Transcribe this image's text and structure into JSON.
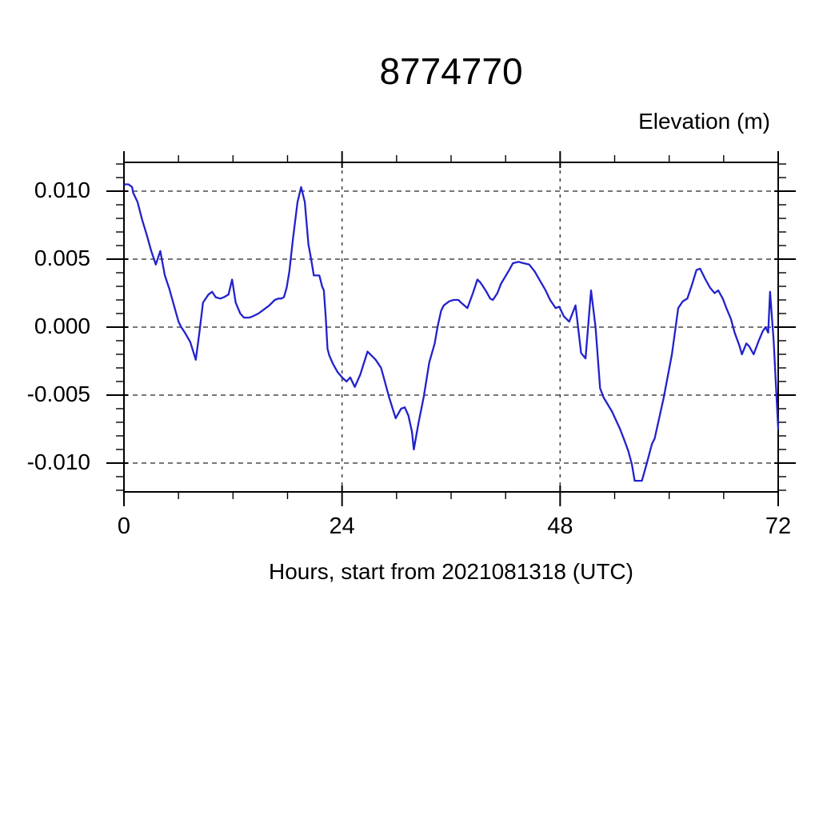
{
  "title": "8774770",
  "ylabel": "Elevation (m)",
  "xlabel": "Hours, start from 2021081318 (UTC)",
  "chart_data": {
    "type": "line",
    "title": "8774770",
    "xlabel": "Hours, start from 2021081318 (UTC)",
    "ylabel": "Elevation (m)",
    "xlim": [
      0,
      72
    ],
    "ylim": [
      -0.01212,
      0.01212
    ],
    "xticks": [
      0,
      24,
      48,
      72
    ],
    "xtick_labels": [
      "0",
      "24",
      "48",
      "72"
    ],
    "x_minor_step": 6,
    "yticks": [
      0.01,
      0.005,
      0.0,
      -0.005,
      -0.01
    ],
    "ytick_labels": [
      "0.010",
      "0.005",
      "0.000",
      "-0.005",
      "-0.010"
    ],
    "y_minor_step": 0.001,
    "grid": "dashed lines at major ticks (horizontal at all 5 y-majors, vertical at x=24 and x=48)",
    "legend": "none",
    "line_color": "#2222cc",
    "series": [
      {
        "name": "Elevation",
        "units": "m",
        "x_units": "hours since 2021081318 UTC",
        "points": [
          [
            0.1,
            0.0105
          ],
          [
            0.5,
            0.0105
          ],
          [
            0.9,
            0.0103
          ],
          [
            1.0,
            0.0099
          ],
          [
            1.5,
            0.0092
          ],
          [
            2.0,
            0.0079
          ],
          [
            2.5,
            0.0068
          ],
          [
            3.0,
            0.0056
          ],
          [
            3.5,
            0.0046
          ],
          [
            4.0,
            0.0056
          ],
          [
            4.5,
            0.0038
          ],
          [
            5.0,
            0.0028
          ],
          [
            5.5,
            0.0016
          ],
          [
            6.0,
            0.0004
          ],
          [
            6.3,
            0.0
          ],
          [
            6.7,
            -0.0004
          ],
          [
            7.3,
            -0.0011
          ],
          [
            7.9,
            -0.0024
          ],
          [
            8.3,
            -0.0004
          ],
          [
            8.7,
            0.0018
          ],
          [
            9.3,
            0.0024
          ],
          [
            9.7,
            0.0026
          ],
          [
            10.1,
            0.0022
          ],
          [
            10.6,
            0.0021
          ],
          [
            11.0,
            0.0022
          ],
          [
            11.5,
            0.0024
          ],
          [
            11.9,
            0.0035
          ],
          [
            12.3,
            0.0018
          ],
          [
            12.8,
            0.001
          ],
          [
            13.2,
            0.0007
          ],
          [
            13.8,
            0.0007
          ],
          [
            14.2,
            0.0008
          ],
          [
            14.8,
            0.001
          ],
          [
            15.4,
            0.0013
          ],
          [
            16.0,
            0.0016
          ],
          [
            16.6,
            0.002
          ],
          [
            17.0,
            0.0021
          ],
          [
            17.3,
            0.0021
          ],
          [
            17.6,
            0.0022
          ],
          [
            17.9,
            0.0029
          ],
          [
            18.2,
            0.0041
          ],
          [
            18.6,
            0.0065
          ],
          [
            19.1,
            0.0092
          ],
          [
            19.5,
            0.0103
          ],
          [
            19.9,
            0.0092
          ],
          [
            20.3,
            0.0061
          ],
          [
            20.6,
            0.005
          ],
          [
            20.9,
            0.0038
          ],
          [
            21.5,
            0.0038
          ],
          [
            21.8,
            0.003
          ],
          [
            22.0,
            0.0027
          ],
          [
            22.2,
            0.0008
          ],
          [
            22.4,
            -0.0016
          ],
          [
            22.6,
            -0.0021
          ],
          [
            23.0,
            -0.0027
          ],
          [
            23.5,
            -0.0033
          ],
          [
            24.0,
            -0.0037
          ],
          [
            24.5,
            -0.004
          ],
          [
            24.9,
            -0.0037
          ],
          [
            25.4,
            -0.0044
          ],
          [
            26.0,
            -0.0035
          ],
          [
            26.8,
            -0.0018
          ],
          [
            27.7,
            -0.0024
          ],
          [
            28.3,
            -0.003
          ],
          [
            29.2,
            -0.0052
          ],
          [
            29.9,
            -0.0067
          ],
          [
            30.5,
            -0.006
          ],
          [
            30.9,
            -0.0059
          ],
          [
            31.3,
            -0.0065
          ],
          [
            31.7,
            -0.0077
          ],
          [
            31.9,
            -0.009
          ],
          [
            32.4,
            -0.0071
          ],
          [
            33.0,
            -0.0051
          ],
          [
            33.6,
            -0.0026
          ],
          [
            34.2,
            -0.0012
          ],
          [
            34.5,
            0.0
          ],
          [
            34.9,
            0.0012
          ],
          [
            35.2,
            0.0016
          ],
          [
            35.8,
            0.0019
          ],
          [
            36.3,
            0.002
          ],
          [
            36.8,
            0.002
          ],
          [
            37.1,
            0.0018
          ],
          [
            37.8,
            0.0014
          ],
          [
            38.4,
            0.0025
          ],
          [
            38.9,
            0.0035
          ],
          [
            39.2,
            0.0033
          ],
          [
            39.8,
            0.0027
          ],
          [
            40.3,
            0.0021
          ],
          [
            40.6,
            0.002
          ],
          [
            41.1,
            0.0025
          ],
          [
            41.5,
            0.0032
          ],
          [
            42.4,
            0.0042
          ],
          [
            42.8,
            0.0047
          ],
          [
            43.4,
            0.0048
          ],
          [
            44.0,
            0.0047
          ],
          [
            44.6,
            0.0046
          ],
          [
            45.2,
            0.0041
          ],
          [
            45.8,
            0.0034
          ],
          [
            46.4,
            0.0027
          ],
          [
            46.9,
            0.002
          ],
          [
            47.5,
            0.0014
          ],
          [
            47.9,
            0.0015
          ],
          [
            48.4,
            0.0008
          ],
          [
            49.0,
            0.0004
          ],
          [
            49.7,
            0.0016
          ],
          [
            50.3,
            -0.0019
          ],
          [
            50.8,
            -0.0023
          ],
          [
            51.4,
            0.0027
          ],
          [
            51.9,
            0.0
          ],
          [
            52.4,
            -0.0045
          ],
          [
            52.8,
            -0.0052
          ],
          [
            53.7,
            -0.0062
          ],
          [
            54.6,
            -0.0075
          ],
          [
            55.0,
            -0.0082
          ],
          [
            55.5,
            -0.0091
          ],
          [
            55.9,
            -0.0101
          ],
          [
            56.2,
            -0.0113
          ],
          [
            57.0,
            -0.0113
          ],
          [
            57.5,
            -0.0101
          ],
          [
            58.1,
            -0.0086
          ],
          [
            58.4,
            -0.0082
          ],
          [
            59.4,
            -0.0052
          ],
          [
            60.3,
            -0.002
          ],
          [
            61.0,
            0.0014
          ],
          [
            61.5,
            0.0019
          ],
          [
            62.0,
            0.0021
          ],
          [
            62.5,
            0.0031
          ],
          [
            63.0,
            0.0042
          ],
          [
            63.4,
            0.0043
          ],
          [
            64.0,
            0.0035
          ],
          [
            64.5,
            0.0029
          ],
          [
            65.0,
            0.0025
          ],
          [
            65.4,
            0.0027
          ],
          [
            65.9,
            0.0021
          ],
          [
            66.3,
            0.0014
          ],
          [
            66.8,
            0.0006
          ],
          [
            67.2,
            -0.0004
          ],
          [
            67.7,
            -0.0013
          ],
          [
            68.0,
            -0.002
          ],
          [
            68.5,
            -0.0012
          ],
          [
            68.8,
            -0.0014
          ],
          [
            69.3,
            -0.002
          ],
          [
            69.8,
            -0.0011
          ],
          [
            70.3,
            -0.0003
          ],
          [
            70.6,
            0.0
          ],
          [
            70.9,
            -0.0004
          ],
          [
            71.1,
            0.0026
          ],
          [
            71.5,
            -0.001
          ],
          [
            72.0,
            -0.0075
          ]
        ]
      }
    ]
  },
  "colors": {
    "background": "#ffffff",
    "line": "#2222cc",
    "frame": "#000000",
    "h_grid": "#777777",
    "v_grid": "#444444",
    "text": "#000000"
  }
}
